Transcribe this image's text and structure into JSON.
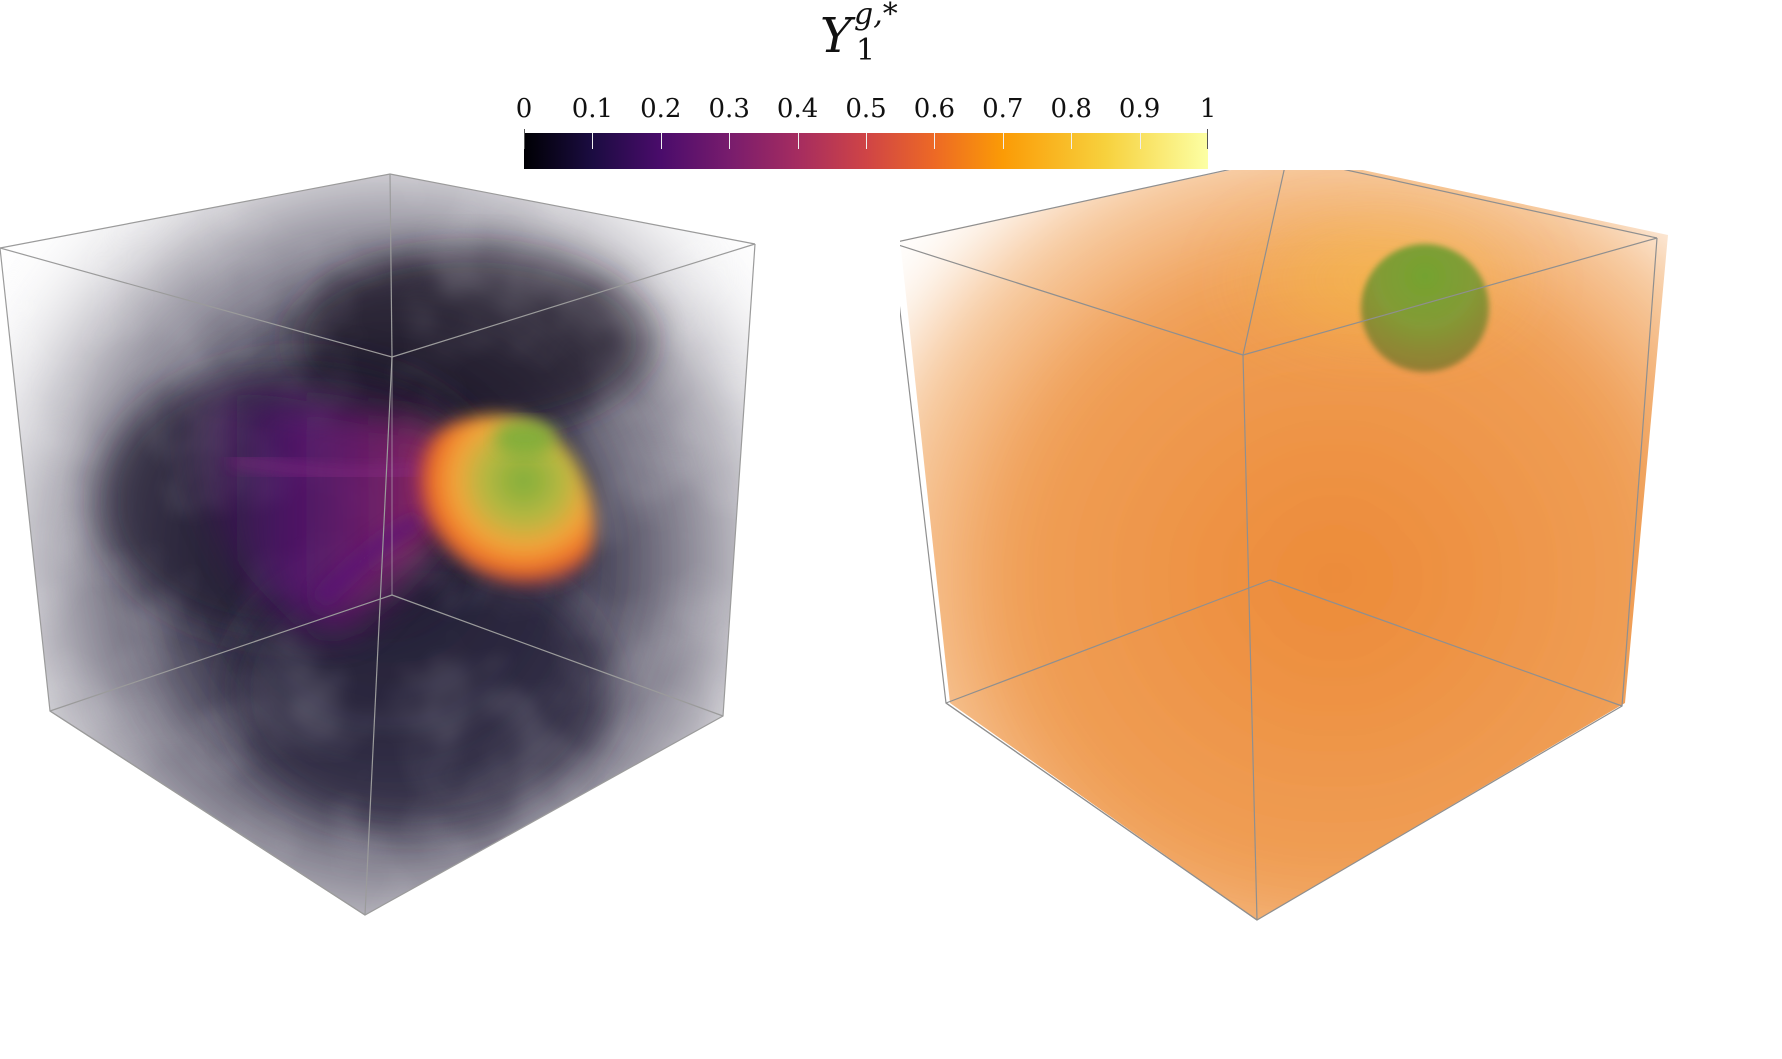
{
  "figure": {
    "colorbar": {
      "title_symbol": "Y",
      "title_superscript": "g,*",
      "title_subscript": "1",
      "colormap": "inferno",
      "range": [
        0,
        1
      ],
      "tick_labels": [
        "0",
        "0.1",
        "0.2",
        "0.3",
        "0.4",
        "0.5",
        "0.6",
        "0.7",
        "0.8",
        "0.9",
        "1"
      ],
      "tick_values": [
        0,
        0.1,
        0.2,
        0.3,
        0.4,
        0.5,
        0.6,
        0.7,
        0.8,
        0.9,
        1
      ]
    },
    "panels": [
      {
        "description": "volume-rendered cube with dark turbulent vapor and a bright droplet",
        "background_color": "#2a2538",
        "droplet_color": "#7fae3a"
      },
      {
        "description": "volume-rendered cube with uniform orange vapor and a green droplet",
        "background_color": "#ee8f3e",
        "droplet_color": "#6fa533"
      }
    ]
  }
}
